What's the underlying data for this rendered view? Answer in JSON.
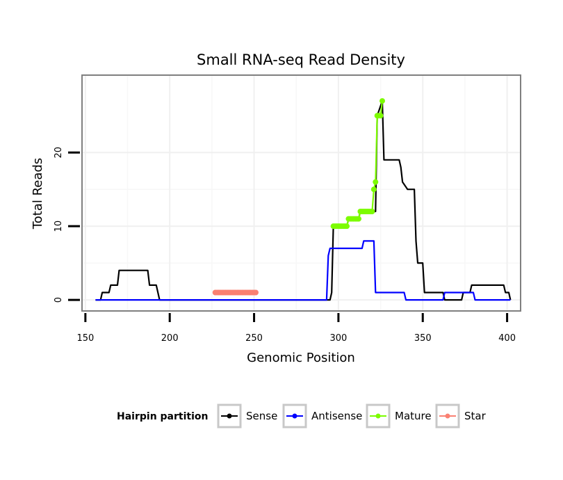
{
  "chart_data": {
    "type": "line",
    "title": "Small RNA-seq Read Density",
    "xlabel": "Genomic Position",
    "ylabel": "Total Reads",
    "xlim": [
      148,
      408
    ],
    "ylim": [
      -1.5,
      30.5
    ],
    "x_ticks": [
      150,
      200,
      250,
      300,
      350,
      400
    ],
    "y_ticks": [
      0,
      10,
      20
    ],
    "grid": true,
    "legend": {
      "title": "Hairpin partition",
      "position": "bottom",
      "entries": [
        {
          "label": "Sense",
          "color": "#000000"
        },
        {
          "label": "Antisense",
          "color": "#0000ff"
        },
        {
          "label": "Mature",
          "color": "#7cfc00"
        },
        {
          "label": "Star",
          "color": "#fa8072"
        }
      ]
    },
    "series": [
      {
        "name": "Sense",
        "color": "#000000",
        "points": [
          [
            156,
            0
          ],
          [
            159,
            0
          ],
          [
            160,
            1
          ],
          [
            164,
            1
          ],
          [
            165,
            2
          ],
          [
            169,
            2
          ],
          [
            170,
            4
          ],
          [
            187,
            4
          ],
          [
            188,
            2
          ],
          [
            192,
            2
          ],
          [
            193,
            1
          ],
          [
            194,
            0
          ],
          [
            295,
            0
          ],
          [
            296,
            1
          ],
          [
            297,
            10
          ],
          [
            305,
            10
          ],
          [
            306,
            11
          ],
          [
            312,
            11
          ],
          [
            313,
            12
          ],
          [
            322,
            12
          ],
          [
            323,
            25
          ],
          [
            326,
            27
          ],
          [
            327,
            19
          ],
          [
            336,
            19
          ],
          [
            337,
            18
          ],
          [
            338,
            16
          ],
          [
            341,
            15
          ],
          [
            345,
            15
          ],
          [
            346,
            8
          ],
          [
            347,
            5
          ],
          [
            350,
            5
          ],
          [
            351,
            1
          ],
          [
            362,
            1
          ],
          [
            363,
            0
          ],
          [
            373,
            0
          ],
          [
            374,
            1
          ],
          [
            378,
            1
          ],
          [
            379,
            2
          ],
          [
            398,
            2
          ],
          [
            399,
            1
          ],
          [
            401,
            1
          ],
          [
            402,
            0
          ]
        ]
      },
      {
        "name": "Antisense",
        "color": "#0000ff",
        "points": [
          [
            156,
            0
          ],
          [
            293,
            0
          ],
          [
            294,
            6
          ],
          [
            295,
            7
          ],
          [
            314,
            7
          ],
          [
            315,
            8
          ],
          [
            321,
            8
          ],
          [
            322,
            1
          ],
          [
            339,
            1
          ],
          [
            340,
            0
          ],
          [
            362,
            0
          ],
          [
            363,
            1
          ],
          [
            380,
            1
          ],
          [
            381,
            0
          ],
          [
            402,
            0
          ]
        ]
      },
      {
        "name": "Mature",
        "color": "#7cfc00",
        "points": [
          [
            297,
            10
          ],
          [
            298,
            10
          ],
          [
            299,
            10
          ],
          [
            300,
            10
          ],
          [
            301,
            10
          ],
          [
            302,
            10
          ],
          [
            303,
            10
          ],
          [
            304,
            10
          ],
          [
            305,
            10
          ],
          [
            306,
            11
          ],
          [
            307,
            11
          ],
          [
            308,
            11
          ],
          [
            309,
            11
          ],
          [
            310,
            11
          ],
          [
            311,
            11
          ],
          [
            312,
            11
          ],
          [
            313,
            12
          ],
          [
            314,
            12
          ],
          [
            315,
            12
          ],
          [
            316,
            12
          ],
          [
            317,
            12
          ],
          [
            318,
            12
          ],
          [
            319,
            12
          ],
          [
            320,
            12
          ],
          [
            321,
            15
          ],
          [
            322,
            16
          ],
          [
            323,
            25
          ],
          [
            324,
            25
          ],
          [
            325,
            25
          ],
          [
            326,
            27
          ]
        ]
      },
      {
        "name": "Star",
        "color": "#fa8072",
        "points": [
          [
            227,
            1
          ],
          [
            228,
            1
          ],
          [
            229,
            1
          ],
          [
            230,
            1
          ],
          [
            231,
            1
          ],
          [
            232,
            1
          ],
          [
            233,
            1
          ],
          [
            234,
            1
          ],
          [
            235,
            1
          ],
          [
            236,
            1
          ],
          [
            237,
            1
          ],
          [
            238,
            1
          ],
          [
            239,
            1
          ],
          [
            240,
            1
          ],
          [
            241,
            1
          ],
          [
            242,
            1
          ],
          [
            243,
            1
          ],
          [
            244,
            1
          ],
          [
            245,
            1
          ],
          [
            246,
            1
          ],
          [
            247,
            1
          ],
          [
            248,
            1
          ],
          [
            249,
            1
          ],
          [
            250,
            1
          ],
          [
            251,
            1
          ]
        ]
      }
    ]
  }
}
